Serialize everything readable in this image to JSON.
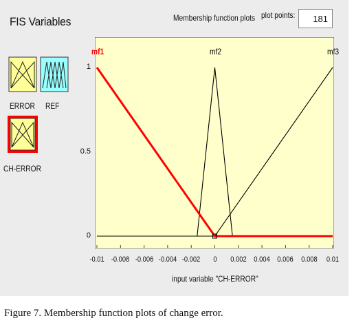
{
  "header": {
    "fis_title": "FIS Variables",
    "plot_title": "Membership function plots",
    "plot_points_label": "plot points:",
    "plot_points_value": "181"
  },
  "variables": [
    {
      "label": "ERROR",
      "color": "#ffff99",
      "selected": false
    },
    {
      "label": "REF",
      "color": "#99ffff",
      "selected": false
    },
    {
      "label": "CH-ERROR",
      "color": "#ffff99",
      "selected": true
    }
  ],
  "chart_data": {
    "type": "line",
    "xlabel": "input variable \"CH-ERROR\"",
    "xlim": [
      -0.01,
      0.01
    ],
    "ylim": [
      0,
      1
    ],
    "x_ticks": [
      "-0.01",
      "-0.008",
      "-0.006",
      "-0.004",
      "-0.002",
      "0",
      "0.002",
      "0.004",
      "0.006",
      "0.008",
      "0.01"
    ],
    "y_ticks": [
      "0",
      "0.5",
      "1"
    ],
    "series": [
      {
        "name": "mf1",
        "color": "#ff0000",
        "selected": true,
        "x": [
          -0.01,
          0.0,
          0.01
        ],
        "y": [
          1,
          0,
          0
        ]
      },
      {
        "name": "mf2",
        "color": "#000000",
        "selected": false,
        "x": [
          -0.01,
          -0.0015,
          0.0,
          0.0015,
          0.01
        ],
        "y": [
          0,
          0,
          1,
          0,
          0
        ]
      },
      {
        "name": "mf3",
        "color": "#000000",
        "selected": false,
        "x": [
          -0.01,
          0.0,
          0.01
        ],
        "y": [
          0,
          0,
          1
        ]
      }
    ],
    "background": "#ffffcc",
    "grid": false
  },
  "caption": "Figure 7. Membership function plots of change error."
}
